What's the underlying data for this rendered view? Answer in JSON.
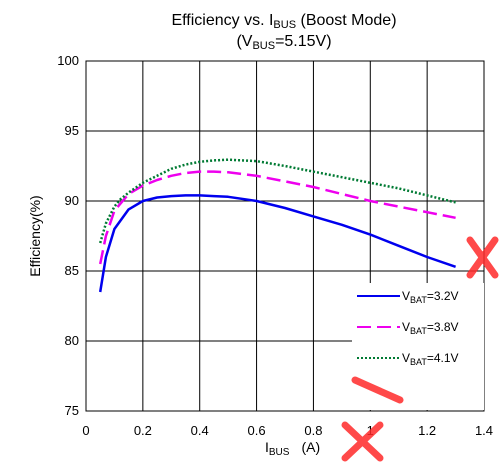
{
  "chart_data": {
    "type": "line",
    "title": "Efficiency vs. I",
    "title_sub": "BUS",
    "title_suffix": " (Boost Mode)",
    "subtitle_prefix": "(V",
    "subtitle_sub": "BUS",
    "subtitle_suffix": "=5.15V)",
    "xlabel_main": "I",
    "xlabel_sub": "BUS",
    "xlabel_unit": "(A)",
    "ylabel": "Efficiency(%)",
    "xlim": [
      0,
      1.4
    ],
    "ylim": [
      75,
      100
    ],
    "xticks": [
      "0",
      "0.2",
      "0.4",
      "0.6",
      "0.8",
      "1",
      "1.2",
      "1.4"
    ],
    "yticks": [
      "75",
      "80",
      "85",
      "90",
      "95",
      "100"
    ],
    "grid": true,
    "legend_position": "bottom-right",
    "series": [
      {
        "name_main": "V",
        "name_sub": "BAT",
        "name_suffix": "=3.2V",
        "color": "#0000ee",
        "style": "solid",
        "x": [
          0.05,
          0.07,
          0.1,
          0.15,
          0.2,
          0.25,
          0.3,
          0.35,
          0.4,
          0.45,
          0.5,
          0.6,
          0.7,
          0.8,
          0.9,
          1.0,
          1.1,
          1.2,
          1.3
        ],
        "y": [
          83.5,
          86.0,
          88.0,
          89.4,
          90.0,
          90.25,
          90.35,
          90.4,
          90.4,
          90.35,
          90.3,
          90.0,
          89.5,
          88.9,
          88.3,
          87.6,
          86.8,
          86.0,
          85.3
        ]
      },
      {
        "name_main": "V",
        "name_sub": "BAT",
        "name_suffix": "=3.8V",
        "color": "#ee00ee",
        "style": "dashed",
        "x": [
          0.05,
          0.07,
          0.1,
          0.15,
          0.2,
          0.25,
          0.3,
          0.35,
          0.4,
          0.45,
          0.5,
          0.6,
          0.7,
          0.8,
          0.9,
          1.0,
          1.1,
          1.2,
          1.3
        ],
        "y": [
          85.5,
          87.5,
          89.3,
          90.5,
          91.1,
          91.5,
          91.8,
          92.0,
          92.1,
          92.1,
          92.05,
          91.8,
          91.4,
          91.0,
          90.5,
          90.0,
          89.6,
          89.2,
          88.8
        ]
      },
      {
        "name_main": "V",
        "name_sub": "BAT",
        "name_suffix": "=4.1V",
        "color": "#007a33",
        "style": "dotted",
        "x": [
          0.05,
          0.07,
          0.1,
          0.12,
          0.15,
          0.2,
          0.25,
          0.3,
          0.35,
          0.4,
          0.45,
          0.5,
          0.6,
          0.7,
          0.8,
          0.9,
          1.0,
          1.1,
          1.2,
          1.3
        ],
        "y": [
          87.0,
          88.4,
          89.6,
          90.1,
          90.6,
          91.3,
          91.8,
          92.3,
          92.6,
          92.8,
          92.9,
          92.95,
          92.85,
          92.5,
          92.1,
          91.7,
          91.3,
          90.9,
          90.4,
          89.9
        ]
      }
    ]
  }
}
